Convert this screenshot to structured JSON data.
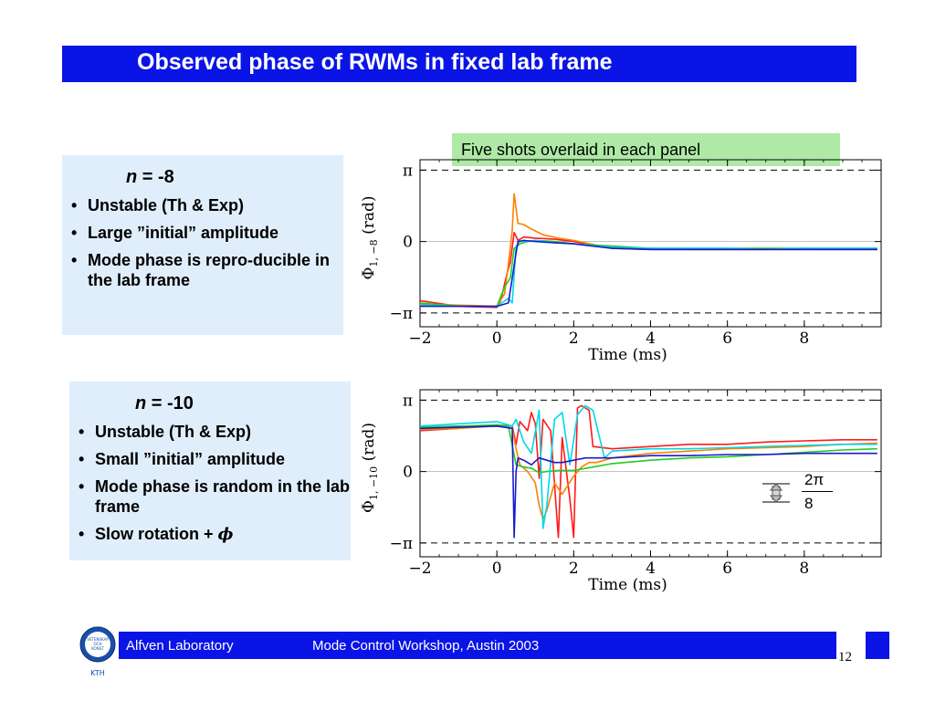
{
  "slide": {
    "title": "Observed phase of RWMs in fixed lab frame",
    "note": "Five shots overlaid in each panel",
    "footer_left": "Alfven Laboratory",
    "footer_center": "Mode Control Workshop, Austin 2003",
    "page_number": "12",
    "logo_text": [
      "VETENSKAP",
      "OCH",
      "KONST",
      "KTH"
    ],
    "accent_color": "#0a14e6",
    "note_color": "#aeeaa6",
    "textbox_color": "#e0eefc"
  },
  "panels": [
    {
      "heading_var": "n",
      "heading_rest": " = -8",
      "bullets": [
        "Unstable (Th & Exp)",
        "Large ”initial” amplitude",
        "Mode phase is repro-ducible in the lab frame"
      ]
    },
    {
      "heading_var": "n",
      "heading_rest": " = -10",
      "bullets": [
        "Unstable (Th & Exp)",
        "Small ”initial” amplitude",
        "Mode phase is random in the lab frame",
        "Slow rotation + "
      ],
      "bullet_symbol": "ϕ"
    }
  ],
  "legend": {
    "numerator": "2π",
    "denominator": "8"
  },
  "chart_data": [
    {
      "type": "line",
      "xlabel": "Time (ms)",
      "ylabel": "Φ",
      "ylabel_sub": "1, −8",
      "ylabel_unit": "(rad)",
      "xlim": [
        -2,
        10
      ],
      "ylim": [
        -3.75,
        3.6
      ],
      "x_ticks": [
        -2,
        0,
        2,
        4,
        6,
        8
      ],
      "x_tick_labels": [
        "−2",
        "0",
        "2",
        "4",
        "6",
        "8"
      ],
      "y_ticks": [
        -3.1416,
        0,
        3.1416
      ],
      "y_tick_labels": [
        "−π",
        "0",
        "π"
      ],
      "reference_lines": [
        3.1416,
        -3.1416
      ],
      "series": [
        {
          "color": "#ff1a1a",
          "x": [
            -2,
            -1,
            0,
            0.1,
            0.25,
            0.35,
            0.45,
            0.55,
            0.7,
            1,
            1.5,
            2,
            2.5,
            3,
            4,
            5,
            6,
            7,
            8,
            9,
            9.9
          ],
          "y": [
            -2.6,
            -2.85,
            -2.9,
            -2.6,
            -1.5,
            -0.9,
            0.4,
            0.05,
            0.2,
            0.15,
            0.1,
            0.0,
            -0.15,
            -0.3,
            -0.35,
            -0.35,
            -0.35,
            -0.35,
            -0.35,
            -0.35,
            -0.35
          ]
        },
        {
          "color": "#ff8000",
          "x": [
            -2,
            -1,
            0,
            0.2,
            0.3,
            0.4,
            0.45,
            0.55,
            0.7,
            0.9,
            1.2,
            1.6,
            2,
            3,
            4,
            5,
            6,
            7,
            8,
            9,
            9.9
          ],
          "y": [
            -2.75,
            -2.8,
            -2.85,
            -2.3,
            -1.0,
            0.5,
            2.1,
            0.8,
            0.75,
            0.55,
            0.3,
            0.15,
            0.05,
            -0.3,
            -0.3,
            -0.35,
            -0.35,
            -0.35,
            -0.3,
            -0.35,
            -0.3
          ]
        },
        {
          "color": "#22cc22",
          "x": [
            -2,
            -1,
            0,
            0.2,
            0.35,
            0.45,
            0.6,
            0.8,
            1,
            1.5,
            2,
            3,
            4,
            5,
            6,
            7,
            8,
            9,
            9.9
          ],
          "y": [
            -2.7,
            -2.85,
            -2.85,
            -2.0,
            -1.6,
            -0.3,
            -0.1,
            0.0,
            0.05,
            0.0,
            -0.1,
            -0.2,
            -0.3,
            -0.3,
            -0.3,
            -0.3,
            -0.3,
            -0.3,
            -0.3
          ]
        },
        {
          "color": "#00d8e8",
          "x": [
            -2,
            -1,
            0,
            0.3,
            0.4,
            0.5,
            0.6,
            0.8,
            1,
            1.5,
            2,
            3,
            4,
            5,
            6,
            7,
            8,
            9,
            9.9
          ],
          "y": [
            -2.8,
            -2.85,
            -2.85,
            -2.5,
            -2.7,
            -0.2,
            0.0,
            0.0,
            0.05,
            -0.05,
            -0.1,
            -0.25,
            -0.3,
            -0.3,
            -0.3,
            -0.35,
            -0.3,
            -0.3,
            -0.3
          ]
        },
        {
          "color": "#1a1acc",
          "x": [
            -2,
            -1,
            0,
            0.3,
            0.5,
            0.55,
            0.7,
            1,
            1.5,
            2,
            3,
            4,
            5,
            6,
            7,
            8,
            9,
            9.9
          ],
          "y": [
            -2.85,
            -2.85,
            -2.85,
            -2.7,
            -0.5,
            0.0,
            0.05,
            0.0,
            -0.05,
            -0.1,
            -0.3,
            -0.35,
            -0.35,
            -0.35,
            -0.35,
            -0.35,
            -0.35,
            -0.35
          ]
        }
      ]
    },
    {
      "type": "line",
      "xlabel": "Time (ms)",
      "ylabel": "Φ",
      "ylabel_sub": "1, −10",
      "ylabel_unit": "(rad)",
      "xlim": [
        -2,
        10
      ],
      "ylim": [
        -3.75,
        3.6
      ],
      "x_ticks": [
        -2,
        0,
        2,
        4,
        6,
        8
      ],
      "x_tick_labels": [
        "−2",
        "0",
        "2",
        "4",
        "6",
        "8"
      ],
      "y_ticks": [
        -3.1416,
        0,
        3.1416
      ],
      "y_tick_labels": [
        "−π",
        "0",
        "π"
      ],
      "reference_lines": [
        3.1416,
        -3.1416
      ],
      "series": [
        {
          "color": "#ff1a1a",
          "x": [
            -2,
            -1,
            0,
            0.4,
            0.5,
            0.6,
            0.8,
            0.9,
            1,
            1.1,
            1.2,
            1.4,
            1.6,
            1.7,
            1.9,
            2,
            2.1,
            2.2,
            2.4,
            2.5,
            3,
            4,
            5,
            6,
            7,
            8,
            9,
            9.9
          ],
          "y": [
            1.8,
            1.9,
            2.05,
            2.0,
            1.2,
            2.2,
            1.8,
            2.6,
            2.1,
            -0.3,
            2.3,
            1.8,
            -2.9,
            1.5,
            -1.2,
            -2.9,
            2.8,
            2.9,
            2.7,
            1.1,
            1.0,
            1.1,
            1.2,
            1.2,
            1.3,
            1.35,
            1.4,
            1.4
          ]
        },
        {
          "color": "#ff8000",
          "x": [
            -2,
            -1,
            0,
            0.4,
            0.5,
            0.6,
            0.8,
            1,
            1.1,
            1.2,
            1.3,
            1.5,
            1.7,
            2,
            2.2,
            2.4,
            2.6,
            3,
            4,
            5,
            6,
            7,
            8,
            9,
            9.9
          ],
          "y": [
            1.85,
            1.9,
            2.0,
            1.9,
            1.0,
            0.3,
            0.0,
            -0.5,
            -1.5,
            -2.1,
            -1.7,
            -0.5,
            -1.0,
            -0.2,
            0.2,
            0.4,
            0.4,
            0.6,
            0.8,
            0.9,
            1.0,
            1.05,
            1.1,
            1.2,
            1.25
          ]
        },
        {
          "color": "#22cc22",
          "x": [
            -2,
            -1,
            0,
            0.3,
            0.5,
            0.7,
            0.9,
            1.1,
            1.3,
            1.6,
            2,
            2.5,
            3,
            4,
            5,
            6,
            7,
            8,
            9,
            9.9
          ],
          "y": [
            1.95,
            2.0,
            2.05,
            2.0,
            0.3,
            0.2,
            0.15,
            -0.05,
            0.0,
            0.05,
            0.05,
            0.2,
            0.35,
            0.5,
            0.6,
            0.65,
            0.75,
            0.85,
            0.95,
            1.0
          ]
        },
        {
          "color": "#00d8e8",
          "x": [
            -2,
            -1,
            0,
            0.4,
            0.5,
            0.7,
            0.9,
            1.1,
            1.2,
            1.3,
            1.5,
            1.7,
            1.9,
            2.1,
            2.3,
            2.5,
            2.8,
            3,
            4,
            5,
            6,
            7,
            8,
            9,
            9.9
          ],
          "y": [
            2.0,
            2.1,
            2.2,
            2.0,
            2.3,
            1.3,
            0.8,
            2.7,
            -2.5,
            -1.5,
            2.3,
            2.6,
            0.3,
            2.5,
            2.9,
            2.7,
            0.6,
            0.9,
            1.0,
            1.0,
            1.05,
            1.1,
            1.15,
            1.2,
            1.2
          ]
        },
        {
          "color": "#1a1acc",
          "x": [
            -2,
            -1,
            0,
            0.4,
            0.45,
            0.5,
            0.55,
            0.7,
            0.9,
            1.1,
            1.3,
            1.5,
            1.7,
            2,
            2.3,
            2.6,
            3,
            4,
            5,
            6,
            7,
            8,
            9,
            9.9
          ],
          "y": [
            1.9,
            1.95,
            2.0,
            1.9,
            -2.9,
            0.0,
            0.6,
            0.5,
            0.3,
            0.6,
            0.5,
            0.4,
            0.4,
            0.5,
            0.6,
            0.6,
            0.6,
            0.7,
            0.7,
            0.75,
            0.75,
            0.8,
            0.8,
            0.8
          ]
        }
      ]
    }
  ]
}
